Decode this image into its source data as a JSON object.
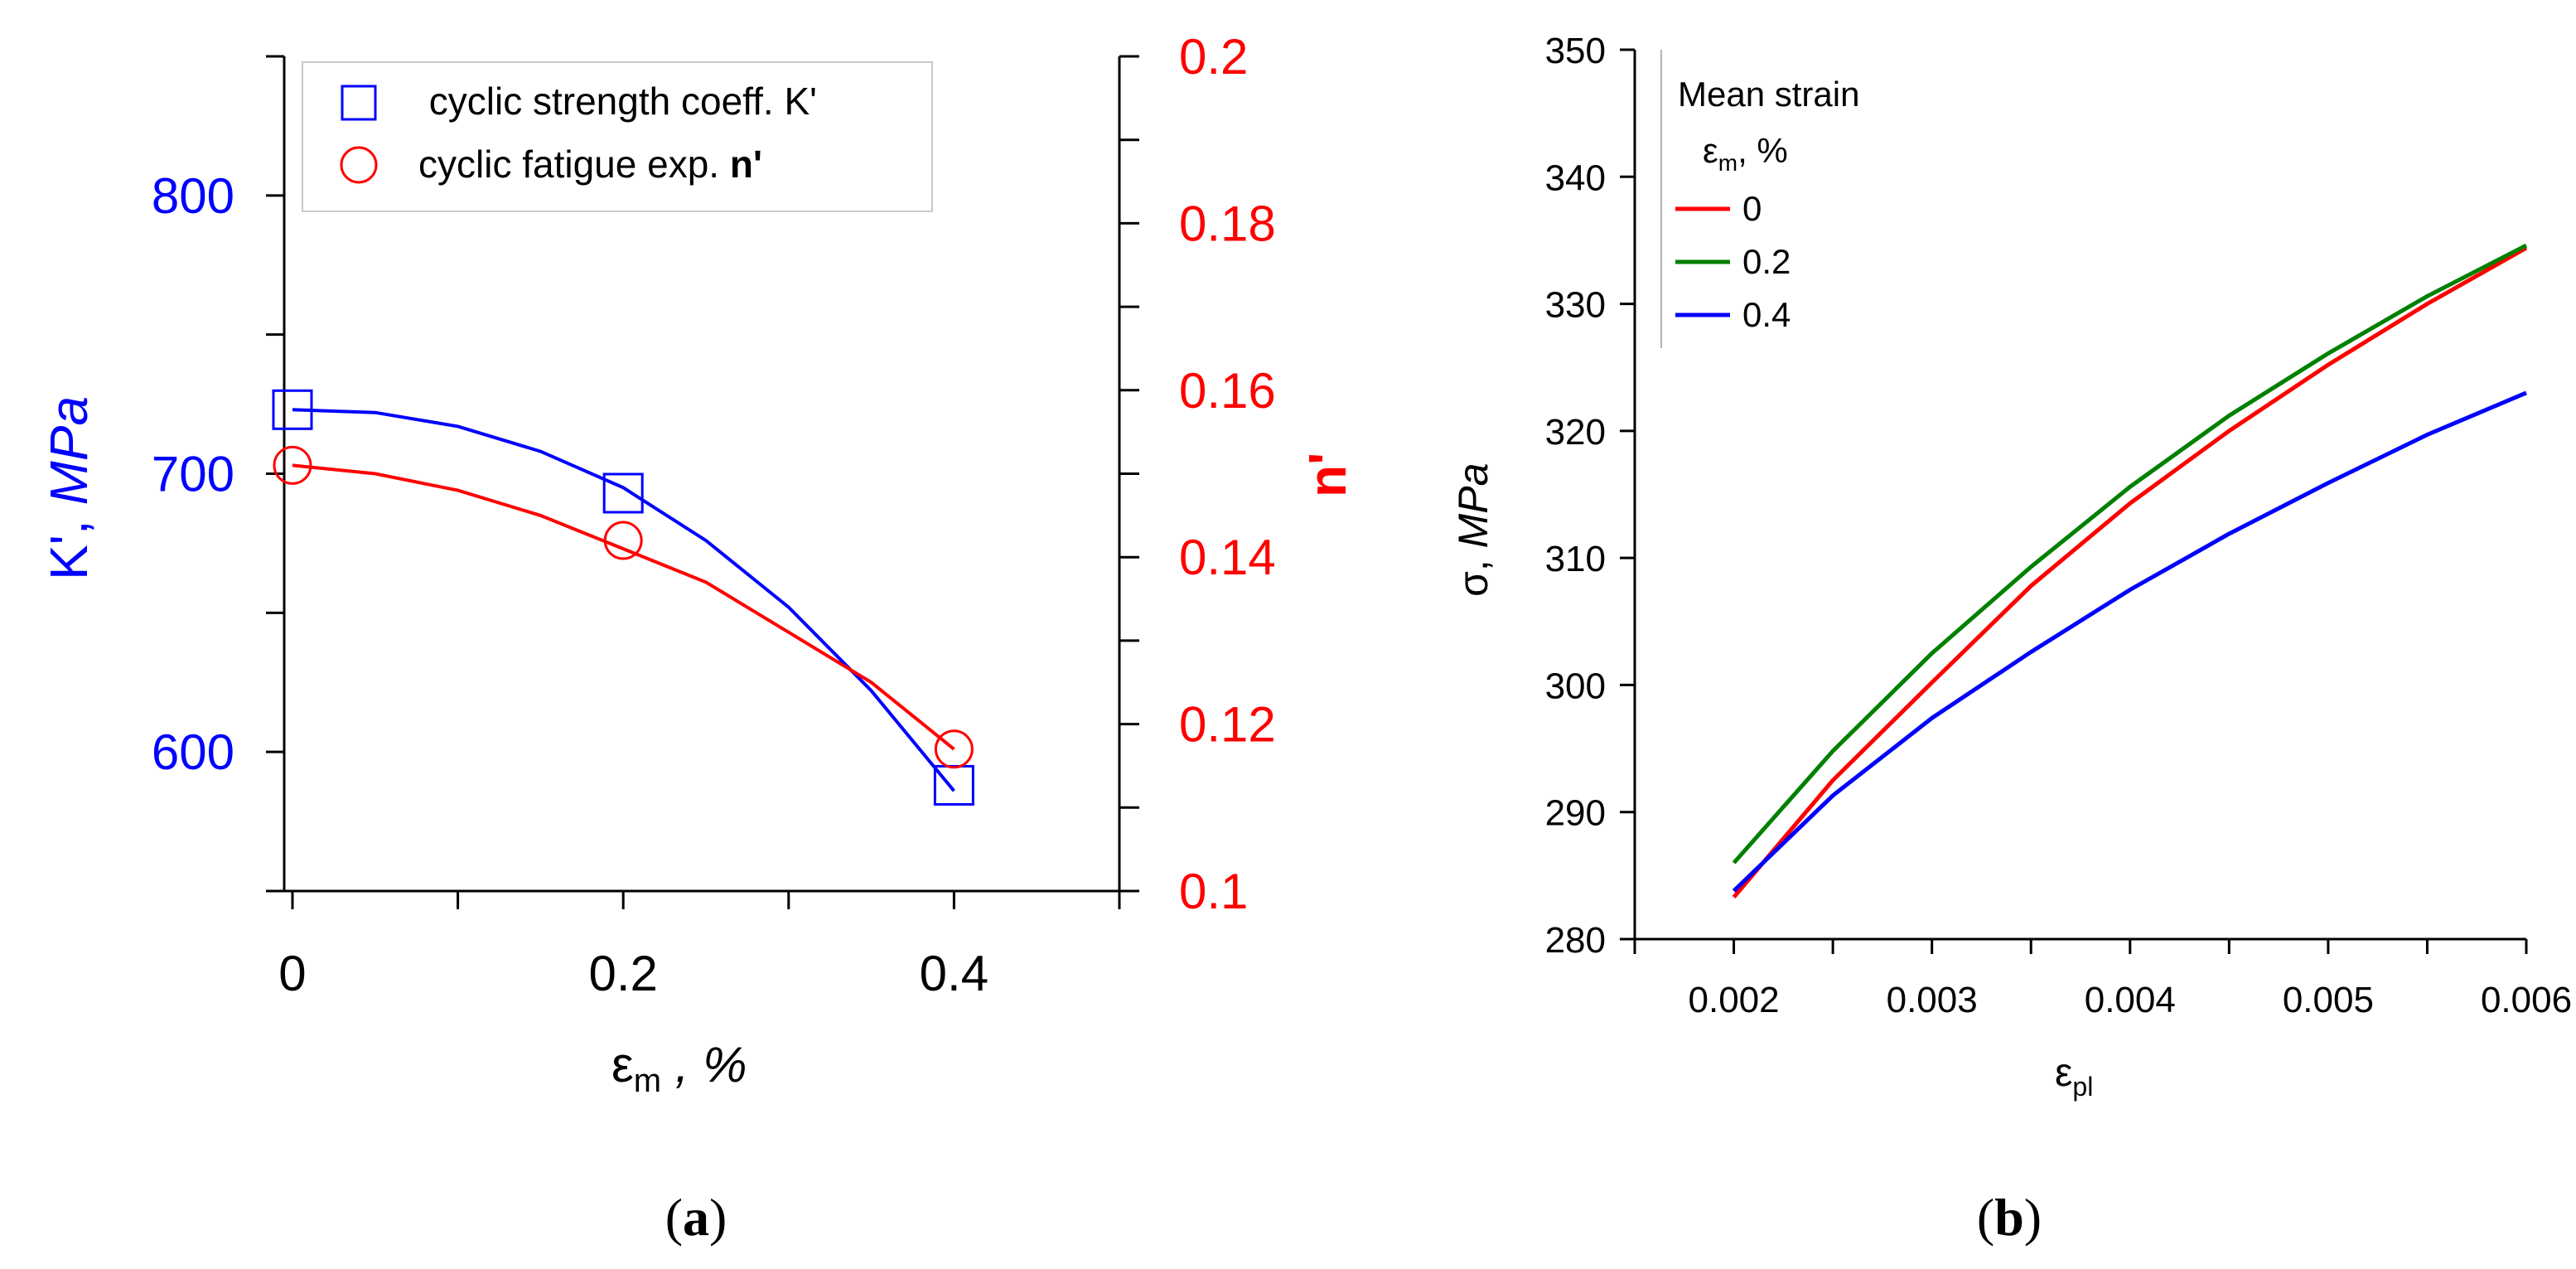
{
  "chart_data": [
    {
      "panel": "(a)",
      "type": "scatter",
      "caption_letter": "a",
      "xlabel_symbol": "ε",
      "xlabel_sub": "m",
      "xlabel_unit": " , %",
      "xlim": [
        -0.005,
        0.5
      ],
      "xticks": [
        0,
        0.1,
        0.2,
        0.3,
        0.4,
        0.5
      ],
      "xticklabels": [
        "0",
        "",
        "0.2",
        "",
        "0.4",
        ""
      ],
      "y_left": {
        "label_main": "K', ",
        "label_unit": "MPa",
        "color": "#0000ff",
        "lim": [
          550,
          850
        ],
        "ticks": [
          550,
          600,
          650,
          700,
          750,
          800,
          850
        ],
        "ticklabels": [
          "",
          "600",
          "",
          "700",
          "",
          "800",
          ""
        ]
      },
      "y_right": {
        "label": "n'",
        "color": "#ff0000",
        "lim": [
          0.1,
          0.2
        ],
        "ticks": [
          0.1,
          0.11,
          0.12,
          0.13,
          0.14,
          0.15,
          0.16,
          0.17,
          0.18,
          0.19,
          0.2
        ],
        "ticklabels": [
          "0.1",
          "",
          "0.12",
          "",
          "0.14",
          "",
          "0.16",
          "",
          "0.18",
          "",
          "0.2"
        ]
      },
      "legend": {
        "position": "top-left",
        "entries": [
          {
            "text": " cyclic strength coeff. K'",
            "marker": "square",
            "color": "#0000ff"
          },
          {
            "text": "cyclic fatigue exp. ",
            "bold_suffix": "n'",
            "marker": "circle",
            "color": "#ff0000"
          }
        ]
      },
      "series": [
        {
          "name": "cyclic strength coeff. K'",
          "axis": "left",
          "color": "#0000ff",
          "marker": "square",
          "x": [
            0,
            0.2,
            0.4
          ],
          "y": [
            723,
            693,
            588
          ],
          "fit_x": [
            0,
            0.05,
            0.1,
            0.15,
            0.2,
            0.25,
            0.3,
            0.35,
            0.4
          ],
          "fit_y": [
            723,
            722,
            717,
            708,
            695,
            676,
            652,
            622,
            586
          ]
        },
        {
          "name": "cyclic fatigue exp. n'",
          "axis": "right",
          "color": "#ff0000",
          "marker": "circle",
          "x": [
            0,
            0.2,
            0.4
          ],
          "y": [
            0.151,
            0.142,
            0.117
          ],
          "fit_x": [
            0,
            0.05,
            0.1,
            0.15,
            0.2,
            0.25,
            0.3,
            0.35,
            0.4
          ],
          "fit_y": [
            0.151,
            0.15,
            0.148,
            0.145,
            0.141,
            0.137,
            0.131,
            0.125,
            0.117
          ]
        }
      ]
    },
    {
      "panel": "(b)",
      "type": "line",
      "caption_letter": "b",
      "xlabel_symbol": "ε",
      "xlabel_sub": "pl",
      "xlim": [
        0.0015,
        0.006
      ],
      "xticks": [
        0.0015,
        0.002,
        0.0025,
        0.003,
        0.0035,
        0.004,
        0.0045,
        0.005,
        0.0055,
        0.006
      ],
      "xticklabels": [
        "",
        "0.002",
        "",
        "0.003",
        "",
        "0.004",
        "",
        "0.005",
        "",
        "0.006"
      ],
      "ylabel_symbol": "σ, ",
      "ylabel_unit": "MPa",
      "ylim": [
        280,
        350
      ],
      "yticks": [
        280,
        290,
        300,
        310,
        320,
        330,
        340,
        350
      ],
      "yticklabels": [
        "280",
        "290",
        "300",
        "310",
        "320",
        "330",
        "340",
        "350"
      ],
      "legend": {
        "position": "top-left",
        "title": "Mean strain",
        "subtitle_symbol": "ε",
        "subtitle_sub": "m",
        "subtitle_unit": ", %",
        "entries": [
          {
            "text": "0",
            "color": "#ff0000"
          },
          {
            "text": "0.2",
            "color": "#008000"
          },
          {
            "text": "0.4",
            "color": "#0000ff"
          }
        ]
      },
      "series": [
        {
          "name": "0",
          "color": "#ff0000",
          "x": [
            0.002,
            0.0025,
            0.003,
            0.0035,
            0.004,
            0.0045,
            0.005,
            0.0055,
            0.006
          ],
          "y": [
            283.3,
            292.5,
            300.2,
            307.8,
            314.3,
            320.0,
            325.2,
            330.0,
            334.4
          ]
        },
        {
          "name": "0.2",
          "color": "#008000",
          "x": [
            0.002,
            0.0025,
            0.003,
            0.0035,
            0.004,
            0.0045,
            0.005,
            0.0055,
            0.006
          ],
          "y": [
            286.0,
            294.8,
            302.5,
            309.3,
            315.6,
            321.2,
            326.1,
            330.6,
            334.6
          ]
        },
        {
          "name": "0.4",
          "color": "#0000ff",
          "x": [
            0.002,
            0.0025,
            0.003,
            0.0035,
            0.004,
            0.0045,
            0.005,
            0.0055,
            0.006
          ],
          "y": [
            283.8,
            291.3,
            297.4,
            302.6,
            307.5,
            311.9,
            315.9,
            319.7,
            323.0
          ]
        }
      ]
    }
  ]
}
